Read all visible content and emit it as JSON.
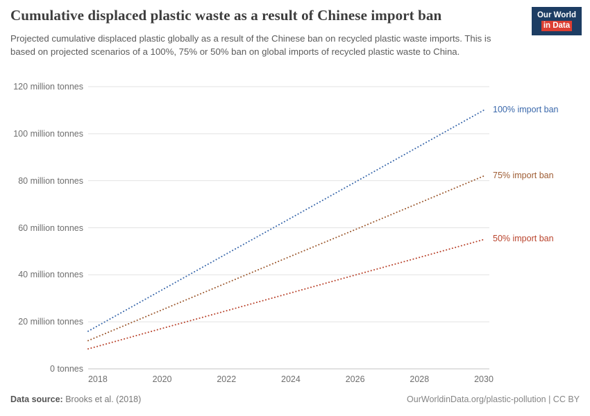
{
  "header": {
    "title": "Cumulative displaced plastic waste as a result of Chinese import ban",
    "subtitle": "Projected cumulative displaced plastic globally as a result of the Chinese ban on recycled plastic waste imports. This is based on projected scenarios of a 100%, 75% or 50% ban on global imports of recycled plastic waste to China.",
    "logo": {
      "line1": "Our World",
      "line2": "in Data",
      "background": "#1d3d63",
      "accent": "#dc3e32"
    }
  },
  "footer": {
    "source_label": "Data source:",
    "source_value": " Brooks et al. (2018)",
    "right_text": "OurWorldinData.org/plastic-pollution | CC BY"
  },
  "chart_data": {
    "type": "line",
    "title": "Cumulative displaced plastic waste as a result of Chinese import ban",
    "xlabel": "",
    "ylabel": "",
    "line_style": "dotted",
    "grid": true,
    "legend_position": "right-end-labels",
    "xlim": [
      2017.7,
      2030
    ],
    "ylim": [
      0,
      120
    ],
    "x_ticks": [
      2018,
      2020,
      2022,
      2024,
      2026,
      2028,
      2030
    ],
    "y_ticks": [
      {
        "value": 0,
        "label": "0 tonnes"
      },
      {
        "value": 20,
        "label": "20 million tonnes"
      },
      {
        "value": 40,
        "label": "40 million tonnes"
      },
      {
        "value": 60,
        "label": "60 million tonnes"
      },
      {
        "value": 80,
        "label": "80 million tonnes"
      },
      {
        "value": 100,
        "label": "100 million tonnes"
      },
      {
        "value": 120,
        "label": "120 million tonnes"
      }
    ],
    "unit": "million tonnes",
    "series": [
      {
        "name": "100% import ban",
        "color": "#3a68ab",
        "x": [
          2017.7,
          2018,
          2020,
          2022,
          2024,
          2026,
          2028,
          2030
        ],
        "values": [
          16,
          18.3,
          33.6,
          48.9,
          64.1,
          79.4,
          94.7,
          110
        ]
      },
      {
        "name": "75% import ban",
        "color": "#9e5c33",
        "x": [
          2017.7,
          2018,
          2020,
          2022,
          2024,
          2026,
          2028,
          2030
        ],
        "values": [
          12,
          13.7,
          25.1,
          36.5,
          47.9,
          59.2,
          70.6,
          82
        ]
      },
      {
        "name": "50% import ban",
        "color": "#b9432c",
        "x": [
          2017.7,
          2018,
          2020,
          2022,
          2024,
          2026,
          2028,
          2030
        ],
        "values": [
          8.5,
          9.6,
          17.2,
          24.7,
          32.3,
          39.9,
          47.4,
          55
        ]
      }
    ]
  }
}
